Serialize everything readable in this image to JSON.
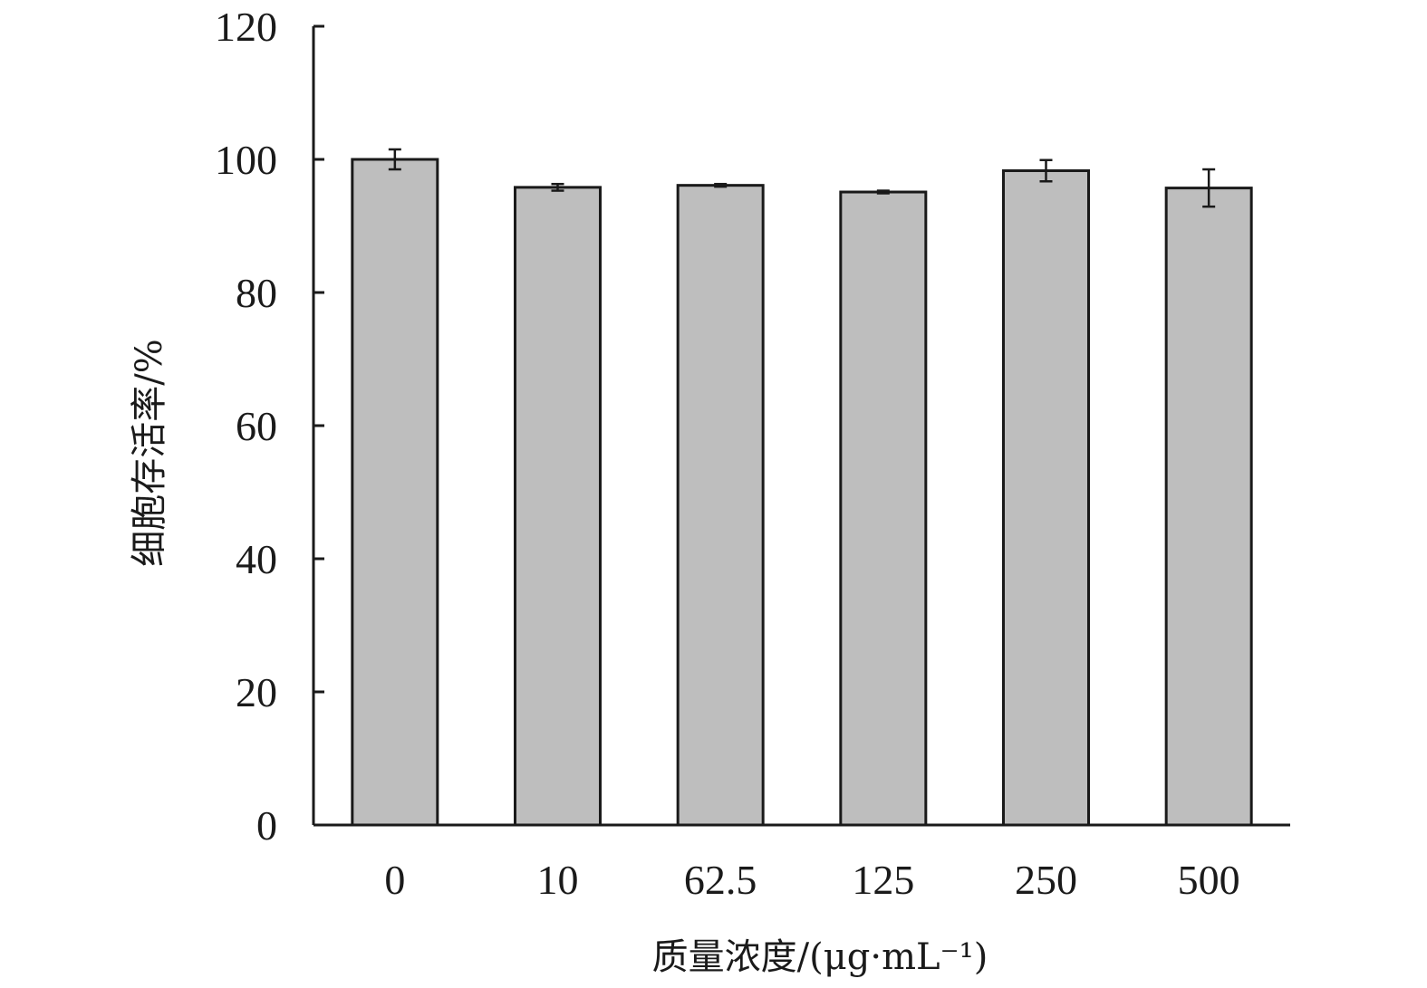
{
  "chart_data": {
    "type": "bar",
    "categories": [
      "0",
      "10",
      "62.5",
      "125",
      "250",
      "500"
    ],
    "values": [
      100,
      95.8,
      96.1,
      95.1,
      98.3,
      95.7
    ],
    "errors": [
      1.5,
      0.5,
      0.2,
      0.2,
      1.6,
      2.8
    ],
    "xlabel": "质量浓度/(μg·mL⁻¹)",
    "ylabel": "细胞存活率/%",
    "ylim": [
      0,
      120
    ],
    "yticks": [
      0,
      20,
      40,
      60,
      80,
      100,
      120
    ],
    "grid": false,
    "colors": {
      "bar_fill": "#bebebe",
      "bar_stroke": "#1a1a1a",
      "axis": "#1a1a1a"
    }
  }
}
